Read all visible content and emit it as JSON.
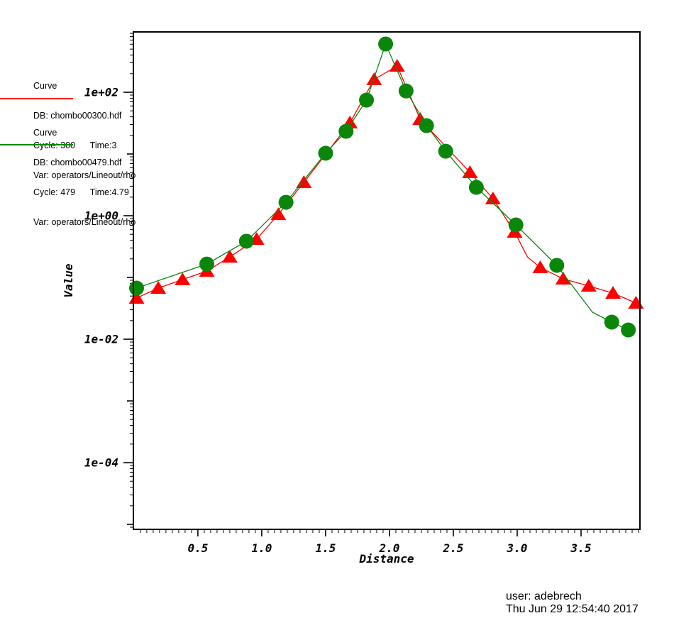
{
  "legend": {
    "curves": [
      {
        "title": "Curve",
        "db": "DB: chombo00300.hdf",
        "cycle_time": "Cycle: 300      Time:3",
        "var": "Var: operators/Lineout/rho",
        "color": "#ff0000"
      },
      {
        "title": "Curve",
        "db": "DB: chombo00479.hdf",
        "cycle_time": "Cycle: 479      Time:4.79",
        "var": "Var: operators/Lineout/rho",
        "color": "#0a870a"
      }
    ]
  },
  "footer": {
    "user_line": "user: adebrech",
    "date_line": "Thu Jun 29 12:54:40 2017"
  },
  "chart_data": {
    "type": "line",
    "xlabel": "Distance",
    "ylabel": "Value",
    "grid": false,
    "legend_position": "outside-upper-left",
    "x_axis": {
      "min": -0.005,
      "max": 3.961,
      "major_ticks": [
        0.5,
        1.0,
        1.5,
        2.0,
        2.5,
        3.0,
        3.5
      ],
      "major_labels": [
        "0.5",
        "1.0",
        "1.5",
        "2.0",
        "2.5",
        "3.0",
        "3.5"
      ],
      "minor_step": 0.05
    },
    "y_axis": {
      "scale": "log",
      "log_min": -5.08,
      "log_max": 2.977,
      "labeled_decades": [
        {
          "exp": 2,
          "label": "1e+02"
        },
        {
          "exp": 0,
          "label": "1e+00"
        },
        {
          "exp": -2,
          "label": "1e-02"
        },
        {
          "exp": -4,
          "label": "1e-04"
        }
      ]
    },
    "series": [
      {
        "name": "chombo00300.hdf operators/Lineout/rho",
        "color": "#ff0000",
        "marker": "triangle",
        "points": [
          [
            0.02,
            0.0464,
            1
          ],
          [
            0.19,
            0.0672,
            1
          ],
          [
            0.38,
            0.0924,
            1
          ],
          [
            0.57,
            0.127,
            1
          ],
          [
            0.75,
            0.215,
            1
          ],
          [
            0.96,
            0.417,
            1
          ],
          [
            1.13,
            1.05,
            1
          ],
          [
            1.33,
            3.47,
            1
          ],
          [
            1.69,
            32.0,
            1
          ],
          [
            1.88,
            161,
            1
          ],
          [
            2.06,
            266,
            1
          ],
          [
            2.24,
            36.6,
            1
          ],
          [
            2.63,
            5.02,
            1
          ],
          [
            2.81,
            1.89,
            1
          ],
          [
            2.98,
            0.544,
            1
          ],
          [
            3.08,
            0.215,
            0
          ],
          [
            3.18,
            0.145,
            1
          ],
          [
            3.36,
            0.0948,
            1
          ],
          [
            3.56,
            0.0728,
            1
          ],
          [
            3.75,
            0.0558,
            1
          ],
          [
            3.93,
            0.0386,
            1
          ]
        ]
      },
      {
        "name": "chombo00479.hdf operators/Lineout/rho",
        "color": "#0a870a",
        "marker": "circle",
        "points": [
          [
            0.02,
            0.0672,
            1
          ],
          [
            0.57,
            0.165,
            1
          ],
          [
            0.88,
            0.386,
            1
          ],
          [
            1.19,
            1.65,
            1
          ],
          [
            1.5,
            10.3,
            1
          ],
          [
            1.66,
            23.3,
            1
          ],
          [
            1.82,
            74.7,
            1
          ],
          [
            1.97,
            605,
            1
          ],
          [
            2.13,
            105,
            1
          ],
          [
            2.29,
            28.8,
            1
          ],
          [
            2.44,
            11.1,
            1
          ],
          [
            2.68,
            2.88,
            1
          ],
          [
            2.99,
            0.709,
            1
          ],
          [
            3.31,
            0.157,
            1
          ],
          [
            3.59,
            0.0273,
            0
          ],
          [
            3.74,
            0.0189,
            1
          ],
          [
            3.87,
            0.0141,
            1
          ]
        ]
      }
    ]
  }
}
